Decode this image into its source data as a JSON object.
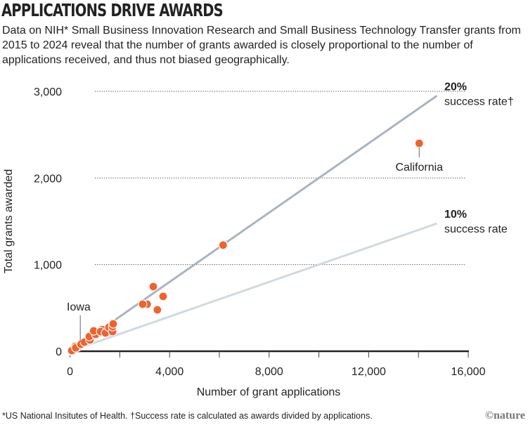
{
  "title": "APPLICATIONS DRIVE AWARDS",
  "subtitle": "Data on NIH* Small Business Innovation Research and Small Business Technology Transfer grants from 2015 to 2024 reveal that the number of grants awarded is closely proportional to the number of applications received, and thus not biased geographically.",
  "footnote": "*US National Insitutes of Health. †Success rate is calculated as awards divided by applications.",
  "logo": "©nature",
  "chart_data": {
    "type": "scatter",
    "xlabel": "Number of grant applications",
    "ylabel": "Total grants awarded",
    "xlim": [
      0,
      16000
    ],
    "ylim": [
      0,
      3000
    ],
    "x_ticks": [
      0,
      4000,
      8000,
      12000,
      16000
    ],
    "x_tick_labels": [
      "0",
      "4,000",
      "8,000",
      "12,000",
      "16,000"
    ],
    "x_minor_ticks": [
      2000,
      6000,
      10000,
      14000
    ],
    "y_ticks": [
      0,
      1000,
      2000,
      3000
    ],
    "y_tick_labels": [
      "0",
      "1,000",
      "2,000",
      "3,000"
    ],
    "grid": "horizontal dotted",
    "point_color": "#f0622d",
    "reference_lines": [
      {
        "rate": 0.2,
        "label_bold": "20%",
        "label": "success rate†",
        "color": "#a9b4c0",
        "x_end": 14740
      },
      {
        "rate": 0.1,
        "label_bold": "10%",
        "label": "success rate",
        "color": "#cfdae2",
        "x_end": 14740
      }
    ],
    "annotations": [
      {
        "label": "California",
        "x": 14030,
        "y": 2400
      },
      {
        "label": "Iowa",
        "x": 440,
        "y": 81
      }
    ],
    "points": [
      [
        14030,
        2400
      ],
      [
        6150,
        1225
      ],
      [
        3345,
        746
      ],
      [
        3740,
        633
      ],
      [
        2920,
        543
      ],
      [
        3100,
        543
      ],
      [
        3510,
        478
      ],
      [
        1735,
        316
      ],
      [
        1710,
        284
      ],
      [
        1710,
        227
      ],
      [
        1565,
        276
      ],
      [
        1425,
        211
      ],
      [
        1230,
        227
      ],
      [
        950,
        235
      ],
      [
        1030,
        195
      ],
      [
        775,
        170
      ],
      [
        800,
        130
      ],
      [
        580,
        105
      ],
      [
        440,
        81
      ],
      [
        230,
        40
      ],
      [
        210,
        57
      ],
      [
        70,
        8
      ],
      [
        120,
        20
      ],
      [
        320,
        50
      ],
      [
        650,
        120
      ],
      [
        1100,
        210
      ],
      [
        1300,
        250
      ],
      [
        1500,
        240
      ],
      [
        900,
        180
      ],
      [
        40,
        5
      ]
    ]
  }
}
